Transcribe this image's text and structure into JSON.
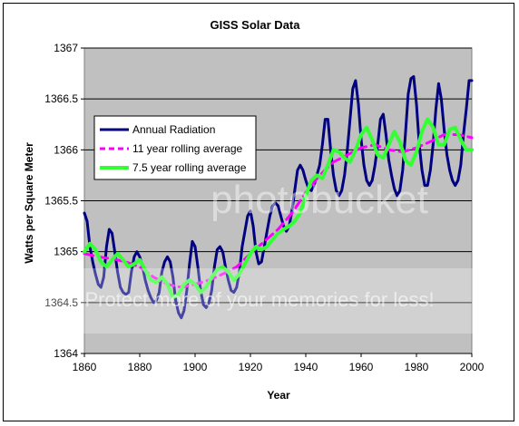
{
  "chart_data": {
    "type": "line",
    "title": "GISS Solar Data",
    "xlabel": "Year",
    "ylabel": "Watts per Square Meter",
    "xlim": [
      1860,
      2000
    ],
    "ylim": [
      1364,
      1367
    ],
    "xticks": [
      1860,
      1880,
      1900,
      1920,
      1940,
      1960,
      1980,
      2000
    ],
    "yticks": [
      1364,
      1364.5,
      1365,
      1365.5,
      1366,
      1366.5,
      1367
    ],
    "ytick_labels": [
      "1364",
      "1364.5",
      "1365",
      "1365.5",
      "1366",
      "1366.5",
      "1367"
    ],
    "grid": "horizontal",
    "plot_background": "#c0c0c0",
    "legend_position": "upper-left",
    "series": [
      {
        "name": "Annual Radiation",
        "color": "#000080",
        "x": [
          1860,
          1861,
          1862,
          1863,
          1864,
          1865,
          1866,
          1867,
          1868,
          1869,
          1870,
          1871,
          1872,
          1873,
          1874,
          1875,
          1876,
          1877,
          1878,
          1879,
          1880,
          1881,
          1882,
          1883,
          1884,
          1885,
          1886,
          1887,
          1888,
          1889,
          1890,
          1891,
          1892,
          1893,
          1894,
          1895,
          1896,
          1897,
          1898,
          1899,
          1900,
          1901,
          1902,
          1903,
          1904,
          1905,
          1906,
          1907,
          1908,
          1909,
          1910,
          1911,
          1912,
          1913,
          1914,
          1915,
          1916,
          1917,
          1918,
          1919,
          1920,
          1921,
          1922,
          1923,
          1924,
          1925,
          1926,
          1927,
          1928,
          1929,
          1930,
          1931,
          1932,
          1933,
          1934,
          1935,
          1936,
          1937,
          1938,
          1939,
          1940,
          1941,
          1942,
          1943,
          1944,
          1945,
          1946,
          1947,
          1948,
          1949,
          1950,
          1951,
          1952,
          1953,
          1954,
          1955,
          1956,
          1957,
          1958,
          1959,
          1960,
          1961,
          1962,
          1963,
          1964,
          1965,
          1966,
          1967,
          1968,
          1969,
          1970,
          1971,
          1972,
          1973,
          1974,
          1975,
          1976,
          1977,
          1978,
          1979,
          1980,
          1981,
          1982,
          1983,
          1984,
          1985,
          1986,
          1987,
          1988,
          1989,
          1990,
          1991,
          1992,
          1993,
          1994,
          1995,
          1996,
          1997,
          1998,
          1999,
          2000
        ],
        "values": [
          1365.38,
          1365.3,
          1365.05,
          1364.9,
          1364.78,
          1364.68,
          1364.65,
          1364.75,
          1365.05,
          1365.22,
          1365.18,
          1365.0,
          1364.8,
          1364.65,
          1364.6,
          1364.58,
          1364.6,
          1364.8,
          1364.95,
          1365.0,
          1364.95,
          1364.85,
          1364.72,
          1364.62,
          1364.55,
          1364.5,
          1364.52,
          1364.6,
          1364.8,
          1364.9,
          1364.95,
          1364.9,
          1364.75,
          1364.52,
          1364.4,
          1364.35,
          1364.42,
          1364.62,
          1364.88,
          1365.1,
          1365.05,
          1364.85,
          1364.62,
          1364.48,
          1364.45,
          1364.5,
          1364.62,
          1364.85,
          1365.02,
          1365.05,
          1365.0,
          1364.85,
          1364.72,
          1364.62,
          1364.6,
          1364.65,
          1364.8,
          1365.05,
          1365.2,
          1365.35,
          1365.4,
          1365.25,
          1365.0,
          1364.88,
          1364.9,
          1365.05,
          1365.2,
          1365.35,
          1365.45,
          1365.48,
          1365.45,
          1365.35,
          1365.25,
          1365.2,
          1365.25,
          1365.4,
          1365.6,
          1365.8,
          1365.85,
          1365.8,
          1365.7,
          1365.62,
          1365.6,
          1365.65,
          1365.75,
          1365.85,
          1366.05,
          1366.3,
          1366.3,
          1366.0,
          1365.75,
          1365.6,
          1365.55,
          1365.6,
          1365.75,
          1366.0,
          1366.3,
          1366.6,
          1366.68,
          1366.45,
          1366.1,
          1365.85,
          1365.7,
          1365.65,
          1365.7,
          1365.85,
          1366.05,
          1366.3,
          1366.35,
          1366.15,
          1365.9,
          1365.75,
          1365.62,
          1365.55,
          1365.6,
          1365.8,
          1366.15,
          1366.55,
          1366.7,
          1366.72,
          1366.45,
          1366.05,
          1365.8,
          1365.65,
          1365.65,
          1365.8,
          1366.05,
          1366.4,
          1366.65,
          1366.5,
          1366.2,
          1365.95,
          1365.8,
          1365.7,
          1365.65,
          1365.7,
          1365.85,
          1366.15,
          1366.4,
          1366.68,
          1366.68
        ]
      },
      {
        "name": "11 year rolling average",
        "color": "#ff00ff",
        "x": [
          1860,
          1865,
          1870,
          1875,
          1880,
          1885,
          1890,
          1895,
          1900,
          1905,
          1910,
          1915,
          1920,
          1925,
          1930,
          1935,
          1940,
          1945,
          1950,
          1955,
          1960,
          1965,
          1970,
          1975,
          1980,
          1985,
          1990,
          1995,
          2000
        ],
        "values": [
          1364.98,
          1364.95,
          1364.93,
          1364.9,
          1364.85,
          1364.75,
          1364.68,
          1364.65,
          1364.68,
          1364.72,
          1364.78,
          1364.85,
          1364.98,
          1365.1,
          1365.22,
          1365.38,
          1365.58,
          1365.75,
          1365.88,
          1365.95,
          1366.02,
          1366.05,
          1366.0,
          1365.98,
          1366.02,
          1366.08,
          1366.15,
          1366.15,
          1366.12
        ]
      },
      {
        "name": "7.5 year rolling average",
        "color": "#33ff33",
        "x": [
          1860,
          1862,
          1864,
          1866,
          1868,
          1870,
          1872,
          1874,
          1876,
          1878,
          1880,
          1882,
          1884,
          1886,
          1888,
          1890,
          1892,
          1894,
          1896,
          1898,
          1900,
          1902,
          1904,
          1906,
          1908,
          1910,
          1912,
          1914,
          1916,
          1918,
          1920,
          1922,
          1924,
          1926,
          1928,
          1930,
          1932,
          1934,
          1936,
          1938,
          1940,
          1942,
          1944,
          1946,
          1948,
          1950,
          1952,
          1954,
          1956,
          1958,
          1960,
          1962,
          1964,
          1966,
          1968,
          1970,
          1972,
          1974,
          1976,
          1978,
          1980,
          1982,
          1984,
          1986,
          1988,
          1990,
          1992,
          1994,
          1996,
          1998,
          2000
        ],
        "values": [
          1365.0,
          1365.08,
          1365.02,
          1364.9,
          1364.85,
          1364.92,
          1364.98,
          1364.92,
          1364.85,
          1364.88,
          1364.92,
          1364.82,
          1364.72,
          1364.7,
          1364.75,
          1364.68,
          1364.55,
          1364.58,
          1364.68,
          1364.72,
          1364.68,
          1364.6,
          1364.65,
          1364.75,
          1364.82,
          1364.85,
          1364.8,
          1364.72,
          1364.78,
          1364.88,
          1364.98,
          1365.05,
          1365.02,
          1365.05,
          1365.12,
          1365.18,
          1365.22,
          1365.25,
          1365.3,
          1365.38,
          1365.55,
          1365.7,
          1365.75,
          1365.72,
          1365.85,
          1366.0,
          1365.98,
          1365.92,
          1365.88,
          1366.0,
          1366.15,
          1366.22,
          1366.1,
          1365.95,
          1365.92,
          1366.05,
          1366.18,
          1366.08,
          1365.9,
          1365.85,
          1365.98,
          1366.18,
          1366.3,
          1366.22,
          1366.05,
          1366.05,
          1366.2,
          1366.22,
          1366.1,
          1366.0,
          1366.0
        ]
      }
    ]
  },
  "watermark": {
    "brand": "photobucket",
    "tagline": "Protect more of your memories for less!"
  }
}
